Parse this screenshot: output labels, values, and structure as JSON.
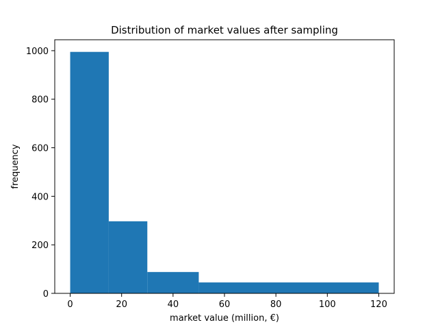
{
  "chart_data": {
    "type": "bar",
    "title": "Distribution of market values after sampling",
    "xlabel": "market value (million, €)",
    "ylabel": "frequency",
    "xlim": [
      -6,
      126
    ],
    "ylim": [
      0,
      1045
    ],
    "bins": [
      {
        "x0": 0,
        "x1": 15,
        "value": 995
      },
      {
        "x0": 15,
        "x1": 30,
        "value": 297
      },
      {
        "x0": 30,
        "x1": 50,
        "value": 88
      },
      {
        "x0": 50,
        "x1": 120,
        "value": 45
      }
    ],
    "xticks": [
      0,
      20,
      40,
      60,
      80,
      100,
      120
    ],
    "yticks": [
      0,
      200,
      400,
      600,
      800,
      1000
    ],
    "bar_color": "#1f77b4",
    "grid": false,
    "legend": "none"
  }
}
